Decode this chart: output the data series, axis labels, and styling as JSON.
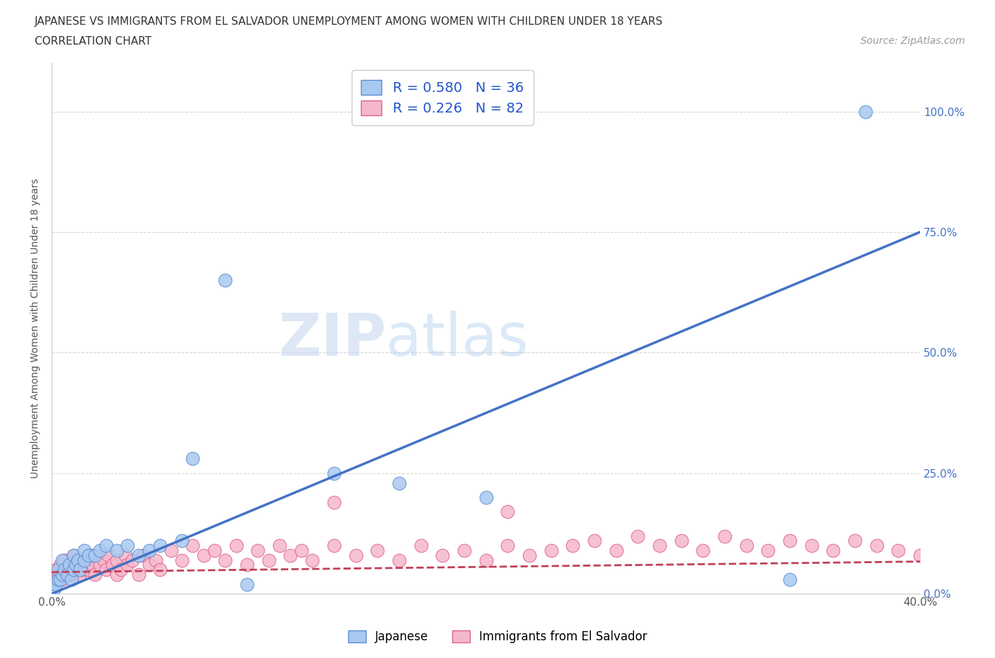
{
  "title_line1": "JAPANESE VS IMMIGRANTS FROM EL SALVADOR UNEMPLOYMENT AMONG WOMEN WITH CHILDREN UNDER 18 YEARS",
  "title_line2": "CORRELATION CHART",
  "source": "Source: ZipAtlas.com",
  "ylabel": "Unemployment Among Women with Children Under 18 years",
  "xlim": [
    0.0,
    0.4
  ],
  "ylim": [
    0.0,
    1.1
  ],
  "xtick_positions": [
    0.0,
    0.05,
    0.1,
    0.15,
    0.2,
    0.25,
    0.3,
    0.35,
    0.4
  ],
  "xtick_labels": [
    "0.0%",
    "",
    "",
    "",
    "",
    "",
    "",
    "",
    "40.0%"
  ],
  "ytick_positions": [
    0.0,
    0.25,
    0.5,
    0.75,
    1.0
  ],
  "ytick_labels": [
    "0.0%",
    "25.0%",
    "50.0%",
    "75.0%",
    "100.0%"
  ],
  "watermark_zip": "ZIP",
  "watermark_atlas": "atlas",
  "japanese_color": "#a8c8f0",
  "salvador_color": "#f5b8cb",
  "japanese_edge": "#5a8ed0",
  "salvador_edge": "#e06090",
  "japanese_line_color": "#4472c4",
  "salvador_line_color": "#c0405a",
  "R_japanese": 0.58,
  "N_japanese": 36,
  "R_salvador": 0.226,
  "N_salvador": 82,
  "legend_text_color": "#2255cc",
  "jap_line_intercept": 0.0,
  "jap_line_slope": 1.875,
  "sal_line_intercept": 0.045,
  "sal_line_slope": 0.055,
  "japanese_x": [
    0.001,
    0.002,
    0.003,
    0.003,
    0.004,
    0.005,
    0.005,
    0.006,
    0.007,
    0.008,
    0.009,
    0.01,
    0.01,
    0.011,
    0.012,
    0.013,
    0.015,
    0.015,
    0.017,
    0.02,
    0.022,
    0.025,
    0.03,
    0.035,
    0.04,
    0.045,
    0.05,
    0.06,
    0.065,
    0.08,
    0.09,
    0.13,
    0.16,
    0.2,
    0.34,
    0.375
  ],
  "japanese_y": [
    0.01,
    0.02,
    0.03,
    0.05,
    0.03,
    0.04,
    0.07,
    0.05,
    0.04,
    0.06,
    0.03,
    0.05,
    0.08,
    0.06,
    0.07,
    0.05,
    0.07,
    0.09,
    0.08,
    0.08,
    0.09,
    0.1,
    0.09,
    0.1,
    0.08,
    0.09,
    0.1,
    0.11,
    0.28,
    0.65,
    0.02,
    0.25,
    0.23,
    0.2,
    0.03,
    1.0
  ],
  "salvador_x": [
    0.001,
    0.002,
    0.003,
    0.004,
    0.005,
    0.006,
    0.007,
    0.008,
    0.009,
    0.01,
    0.01,
    0.011,
    0.012,
    0.013,
    0.014,
    0.015,
    0.016,
    0.017,
    0.018,
    0.019,
    0.02,
    0.02,
    0.022,
    0.024,
    0.025,
    0.026,
    0.028,
    0.03,
    0.03,
    0.032,
    0.034,
    0.035,
    0.037,
    0.04,
    0.042,
    0.045,
    0.048,
    0.05,
    0.055,
    0.06,
    0.065,
    0.07,
    0.075,
    0.08,
    0.085,
    0.09,
    0.095,
    0.1,
    0.105,
    0.11,
    0.115,
    0.12,
    0.13,
    0.14,
    0.15,
    0.16,
    0.17,
    0.18,
    0.19,
    0.2,
    0.21,
    0.22,
    0.23,
    0.24,
    0.25,
    0.26,
    0.27,
    0.28,
    0.29,
    0.3,
    0.31,
    0.32,
    0.33,
    0.34,
    0.35,
    0.36,
    0.37,
    0.38,
    0.39,
    0.4,
    0.21,
    0.13
  ],
  "salvador_y": [
    0.03,
    0.05,
    0.04,
    0.06,
    0.03,
    0.07,
    0.05,
    0.04,
    0.06,
    0.04,
    0.08,
    0.05,
    0.07,
    0.04,
    0.06,
    0.05,
    0.07,
    0.05,
    0.08,
    0.06,
    0.04,
    0.08,
    0.06,
    0.07,
    0.05,
    0.08,
    0.06,
    0.04,
    0.07,
    0.05,
    0.08,
    0.06,
    0.07,
    0.04,
    0.08,
    0.06,
    0.07,
    0.05,
    0.09,
    0.07,
    0.1,
    0.08,
    0.09,
    0.07,
    0.1,
    0.06,
    0.09,
    0.07,
    0.1,
    0.08,
    0.09,
    0.07,
    0.1,
    0.08,
    0.09,
    0.07,
    0.1,
    0.08,
    0.09,
    0.07,
    0.1,
    0.08,
    0.09,
    0.1,
    0.11,
    0.09,
    0.12,
    0.1,
    0.11,
    0.09,
    0.12,
    0.1,
    0.09,
    0.11,
    0.1,
    0.09,
    0.11,
    0.1,
    0.09,
    0.08,
    0.17,
    0.19
  ]
}
